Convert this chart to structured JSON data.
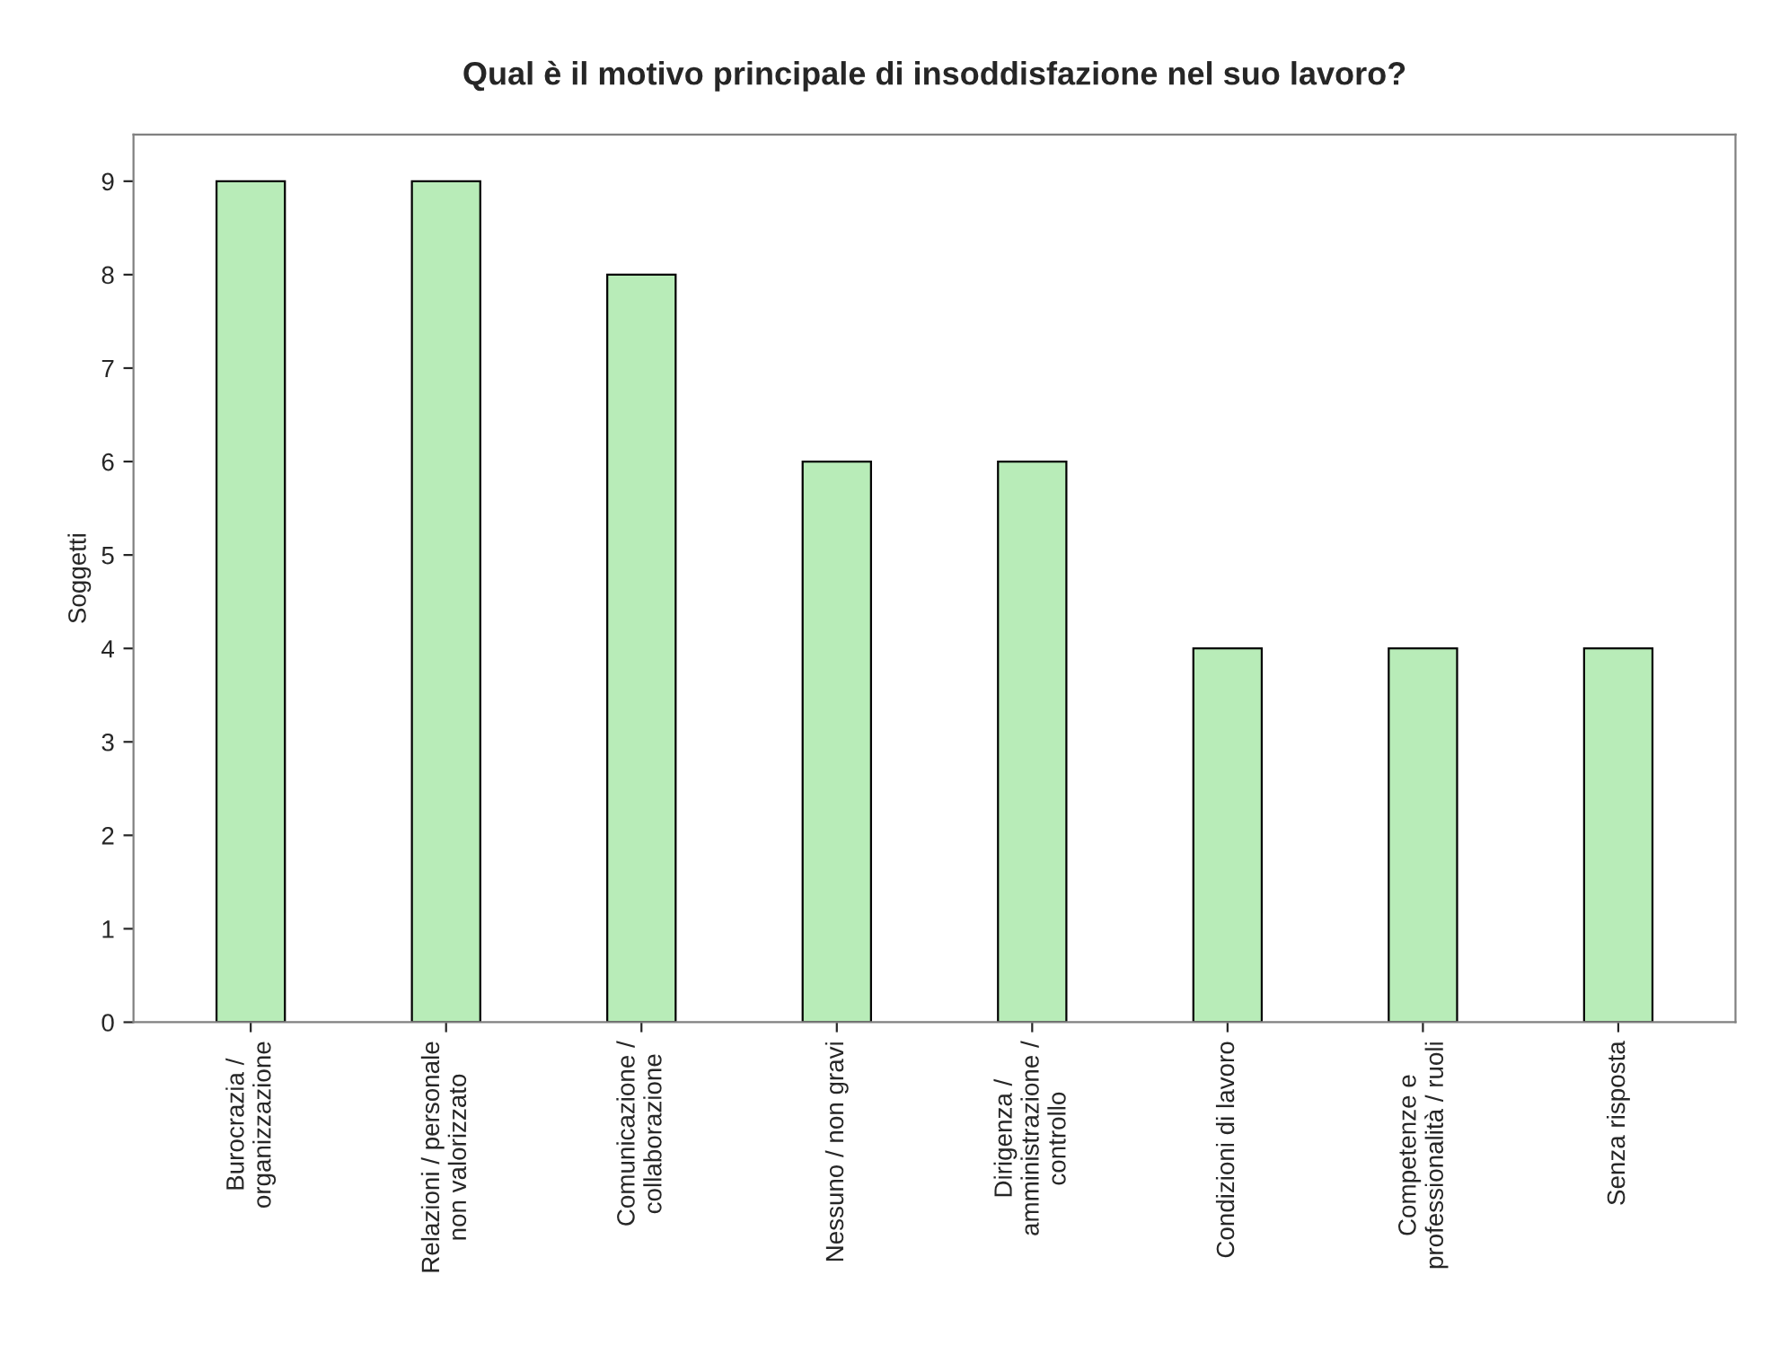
{
  "chart_data": {
    "type": "bar",
    "title": "Qual è il motivo principale di insoddisfazione nel suo lavoro?",
    "ylabel": "Soggetti",
    "categories": [
      "Burocrazia /\norganizzazione",
      "Relazioni / personale\nnon valorizzato",
      "Comunicazione /\ncollaborazione",
      "Nessuno / non gravi",
      "Dirigenza /\namministrazione /\ncontrollo",
      "Condizioni di lavoro",
      "Competenze e\nprofessionalità / ruoli",
      "Senza risposta"
    ],
    "values": [
      9,
      9,
      8,
      6,
      6,
      4,
      4,
      4
    ],
    "color": "#b8ecb8",
    "ylim": [
      0,
      9.5
    ],
    "yticks": [
      0,
      1,
      2,
      3,
      4,
      5,
      6,
      7,
      8,
      9
    ],
    "grid": false
  }
}
